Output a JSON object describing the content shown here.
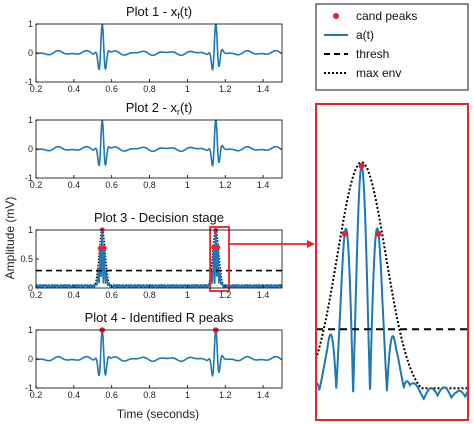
{
  "chart_data": {
    "type": "line",
    "xlabel": "Time (seconds)",
    "ylabel": "Amplitude (mV)",
    "colors": {
      "signal": "#1f77b4",
      "peaks": "#e8242a",
      "highlight": "#e8242a",
      "thresh": "#000000",
      "env": "#000000"
    },
    "legend": {
      "placement": "top-right",
      "entries": [
        "cand peaks",
        "a(t)",
        "thresh",
        "max env"
      ]
    },
    "panels": [
      {
        "title_main": "Plot 1 - x",
        "title_sub": "f",
        "title_tail": "(t)",
        "xlim": [
          0.2,
          1.5
        ],
        "ylim": [
          -1,
          1
        ],
        "xticks": [
          "0.2",
          "0.4",
          "0.6",
          "0.8",
          "1",
          "1.2",
          "1.4"
        ],
        "yticks": [
          "-1",
          "0",
          "1"
        ],
        "beats": [
          0.55,
          1.15
        ],
        "beat_amplitude": 1.0
      },
      {
        "title_main": "Plot 2 - x",
        "title_sub": "r",
        "title_tail": "(t)",
        "xlim": [
          0.2,
          1.5
        ],
        "ylim": [
          -1,
          1
        ],
        "xticks": [
          "0.2",
          "0.4",
          "0.6",
          "0.8",
          "1",
          "1.2",
          "1.4"
        ],
        "yticks": [
          "-1",
          "0",
          "1"
        ],
        "beats": [
          0.55,
          1.15
        ],
        "beat_amplitude": 1.0
      },
      {
        "title_main": "Plot 3 - Decision stage",
        "xlim": [
          0.2,
          1.5
        ],
        "ylim": [
          0,
          1
        ],
        "xticks": [
          "0.2",
          "0.4",
          "0.6",
          "0.8",
          "1",
          "1.2",
          "1.4"
        ],
        "yticks": [
          "0",
          "0.5",
          "1"
        ],
        "beats": [
          0.55,
          1.15
        ],
        "threshold": 0.3,
        "peak_max": 0.95,
        "highlight_x": [
          1.12,
          1.22
        ]
      },
      {
        "title_main": "Plot 4 - Identified R peaks",
        "xlim": [
          0.2,
          1.5
        ],
        "ylim": [
          -1,
          1
        ],
        "xticks": [
          "0.2",
          "0.4",
          "0.6",
          "0.8",
          "1",
          "1.2",
          "1.4"
        ],
        "yticks": [
          "-1",
          "0",
          "1"
        ],
        "beats": [
          0.55,
          1.15
        ],
        "beat_amplitude": 1.0,
        "r_peaks": [
          [
            0.55,
            1.0
          ],
          [
            1.15,
            1.0
          ]
        ]
      }
    ],
    "zoom": {
      "xlim": [
        1.12,
        1.22
      ],
      "ylim": [
        0,
        1
      ],
      "center": 1.15,
      "threshold": 0.3,
      "peak_max": 0.95
    }
  }
}
